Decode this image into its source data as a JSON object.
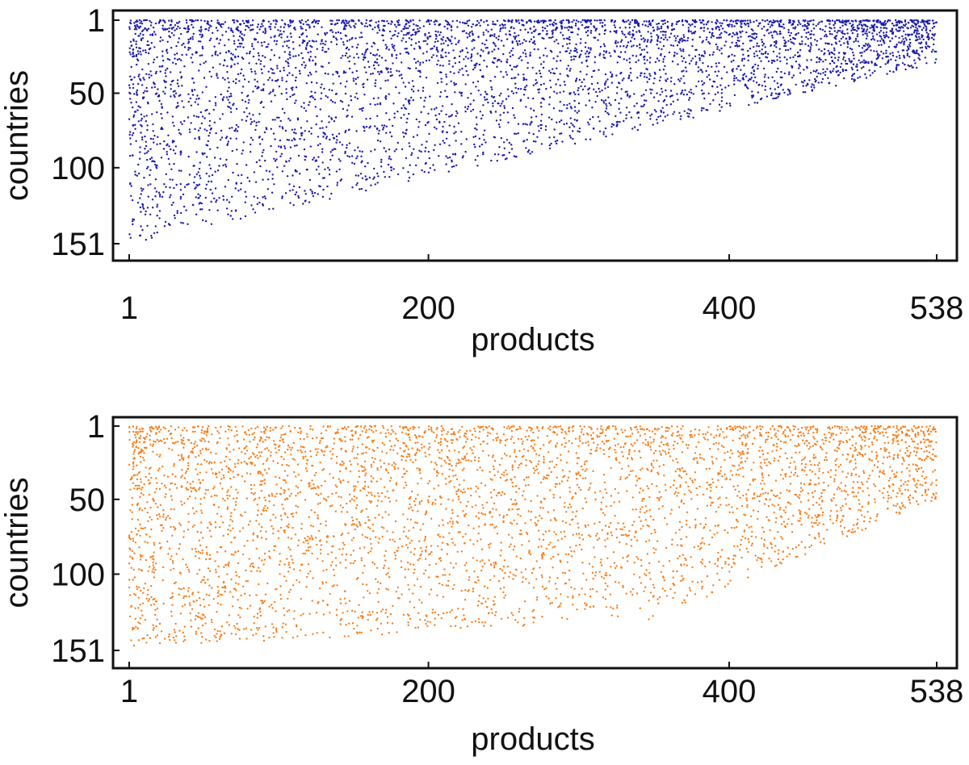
{
  "chart_data": [
    {
      "type": "scatter",
      "xlabel": "products",
      "ylabel": "countries",
      "xticks": [
        "1",
        "200",
        "400",
        "538"
      ],
      "yticks": [
        "1",
        "50",
        "100",
        "151"
      ],
      "xlim": [
        1,
        538
      ],
      "ylim": [
        1,
        151
      ],
      "y_reversed": true,
      "color": "#1a1aa8",
      "grid": false
    },
    {
      "type": "scatter",
      "xlabel": "products",
      "ylabel": "countries",
      "xticks": [
        "1",
        "200",
        "400",
        "538"
      ],
      "yticks": [
        "1",
        "50",
        "100",
        "151"
      ],
      "xlim": [
        1,
        538
      ],
      "ylim": [
        1,
        151
      ],
      "y_reversed": true,
      "color": "#f7801e",
      "grid": false
    }
  ]
}
